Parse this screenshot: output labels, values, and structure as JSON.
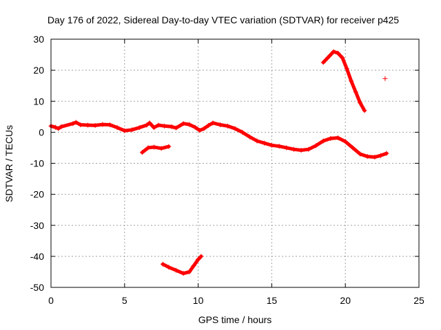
{
  "chart_data": {
    "type": "scatter",
    "title": "Day 176 of 2022, Sidereal Day-to-day VTEC variation (SDTVAR) for receiver p425",
    "xlabel": "GPS time / hours",
    "ylabel": "SDTVAR / TECUs",
    "xlim": [
      0,
      25
    ],
    "ylim": [
      -50,
      30
    ],
    "xticks": [
      0,
      5,
      10,
      15,
      20,
      25
    ],
    "yticks": [
      -50,
      -40,
      -30,
      -20,
      -10,
      0,
      10,
      20,
      30
    ],
    "grid": true,
    "marker": "plus",
    "color": "#ff0000",
    "series": [
      {
        "name": "main",
        "points": [
          [
            0.0,
            2.0
          ],
          [
            0.3,
            1.6
          ],
          [
            0.5,
            1.2
          ],
          [
            0.7,
            1.8
          ],
          [
            1.5,
            2.8
          ],
          [
            1.7,
            3.2
          ],
          [
            2.0,
            2.4
          ],
          [
            2.5,
            2.3
          ],
          [
            3.0,
            2.2
          ],
          [
            3.5,
            2.5
          ],
          [
            4.0,
            2.4
          ],
          [
            4.5,
            1.5
          ],
          [
            5.0,
            0.5
          ],
          [
            5.5,
            0.8
          ],
          [
            6.0,
            1.5
          ],
          [
            6.5,
            2.3
          ],
          [
            6.7,
            3.0
          ],
          [
            7.0,
            1.5
          ],
          [
            7.3,
            2.3
          ],
          [
            7.7,
            2.0
          ],
          [
            8.2,
            1.8
          ],
          [
            8.5,
            1.4
          ],
          [
            9.0,
            2.8
          ],
          [
            9.4,
            2.5
          ],
          [
            9.8,
            1.6
          ],
          [
            10.1,
            0.6
          ],
          [
            10.4,
            1.2
          ],
          [
            10.7,
            2.2
          ],
          [
            11.0,
            3.0
          ],
          [
            11.5,
            2.4
          ],
          [
            12.0,
            2.0
          ],
          [
            12.5,
            1.2
          ],
          [
            13.0,
            0.0
          ],
          [
            13.5,
            -1.5
          ],
          [
            14.0,
            -2.8
          ],
          [
            14.5,
            -3.5
          ],
          [
            15.0,
            -4.2
          ],
          [
            15.5,
            -4.5
          ],
          [
            16.0,
            -5.0
          ],
          [
            16.5,
            -5.5
          ],
          [
            17.0,
            -5.8
          ],
          [
            17.5,
            -5.5
          ],
          [
            18.0,
            -4.3
          ],
          [
            18.5,
            -2.8
          ],
          [
            19.0,
            -2.0
          ],
          [
            19.5,
            -1.8
          ],
          [
            20.0,
            -3.0
          ],
          [
            20.5,
            -5.0
          ],
          [
            21.0,
            -7.0
          ],
          [
            21.5,
            -7.8
          ],
          [
            22.0,
            -8.0
          ],
          [
            22.4,
            -7.5
          ],
          [
            22.8,
            -6.8
          ]
        ]
      },
      {
        "name": "lower-segment",
        "points": [
          [
            6.2,
            -6.5
          ],
          [
            6.6,
            -5.0
          ],
          [
            7.0,
            -4.8
          ],
          [
            7.5,
            -5.2
          ],
          [
            8.0,
            -4.6
          ]
        ]
      },
      {
        "name": "deep-dip",
        "points": [
          [
            7.6,
            -42.5
          ],
          [
            8.0,
            -43.5
          ],
          [
            8.5,
            -44.5
          ],
          [
            9.0,
            -45.5
          ],
          [
            9.4,
            -45.0
          ],
          [
            9.7,
            -43.0
          ],
          [
            10.0,
            -41.0
          ],
          [
            10.2,
            -40.0
          ]
        ]
      },
      {
        "name": "peak",
        "points": [
          [
            18.5,
            22.5
          ],
          [
            18.8,
            24.0
          ],
          [
            19.2,
            26.0
          ],
          [
            19.5,
            25.5
          ],
          [
            19.8,
            24.0
          ],
          [
            20.1,
            20.5
          ],
          [
            20.4,
            16.5
          ],
          [
            20.7,
            13.0
          ],
          [
            21.0,
            9.5
          ],
          [
            21.3,
            7.0
          ]
        ]
      },
      {
        "name": "outlier",
        "points": [
          [
            22.7,
            17.3
          ]
        ]
      }
    ]
  }
}
